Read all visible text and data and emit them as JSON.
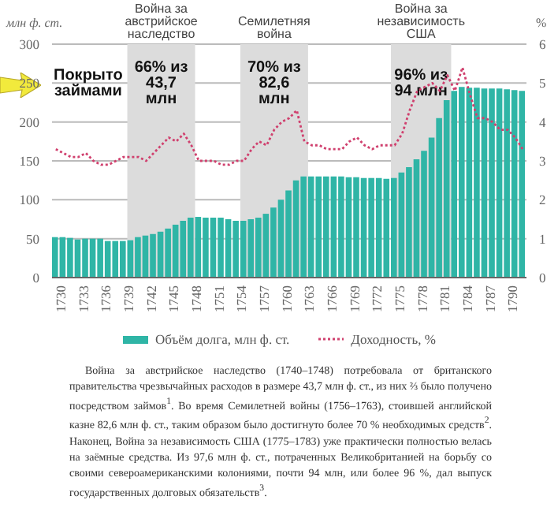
{
  "chart_data": {
    "type": "bar",
    "ylabel": "млн ф. ст.",
    "y2label": "%",
    "x": [
      1730,
      1731,
      1732,
      1733,
      1734,
      1735,
      1736,
      1737,
      1738,
      1739,
      1740,
      1741,
      1742,
      1743,
      1744,
      1745,
      1746,
      1747,
      1748,
      1749,
      1750,
      1751,
      1752,
      1753,
      1754,
      1755,
      1756,
      1757,
      1758,
      1759,
      1760,
      1761,
      1762,
      1763,
      1764,
      1765,
      1766,
      1767,
      1768,
      1769,
      1770,
      1771,
      1772,
      1773,
      1774,
      1775,
      1776,
      1777,
      1778,
      1779,
      1780,
      1781,
      1782,
      1783,
      1784,
      1785,
      1786,
      1787,
      1788,
      1789,
      1790,
      1791,
      1792
    ],
    "xlim": [
      1729.5,
      1792.5
    ],
    "xticks": [
      1730,
      1733,
      1736,
      1739,
      1742,
      1745,
      1748,
      1751,
      1754,
      1757,
      1760,
      1763,
      1766,
      1769,
      1772,
      1775,
      1778,
      1781,
      1784,
      1787,
      1790
    ],
    "ylim": [
      0,
      300
    ],
    "yticks": [
      0,
      50,
      100,
      150,
      200,
      250,
      300
    ],
    "y2lim": [
      0,
      6
    ],
    "y2ticks": [
      0,
      1,
      2,
      3,
      4,
      5,
      6
    ],
    "grid": "y",
    "legend": "bottom",
    "series": [
      {
        "name": "Объём долга, млн ф. ст.",
        "color": "#2fb5a6",
        "values": [
          52,
          52,
          51,
          49,
          50,
          50,
          50,
          47,
          47,
          47,
          48,
          52,
          54,
          56,
          59,
          63,
          68,
          73,
          77,
          78,
          77,
          77,
          77,
          75,
          73,
          73,
          75,
          77,
          82,
          90,
          100,
          112,
          125,
          130,
          130,
          130,
          130,
          130,
          130,
          129,
          129,
          128,
          128,
          128,
          127,
          128,
          135,
          142,
          152,
          163,
          180,
          205,
          228,
          240,
          245,
          244,
          244,
          243,
          243,
          243,
          242,
          241,
          240
        ]
      },
      {
        "name": "Доходность, %",
        "type": "line",
        "axis": "y2",
        "color": "#d0406e",
        "line_style": "dotted",
        "marker": "none",
        "values": [
          3.3,
          3.2,
          3.1,
          3.1,
          3.2,
          3.0,
          2.9,
          2.9,
          3.0,
          3.1,
          3.1,
          3.1,
          3.0,
          3.2,
          3.4,
          3.6,
          3.5,
          3.7,
          3.4,
          3.0,
          3.0,
          3.0,
          2.9,
          2.9,
          3.0,
          3.0,
          3.3,
          3.5,
          3.4,
          3.8,
          4.0,
          4.1,
          4.3,
          3.5,
          3.4,
          3.4,
          3.3,
          3.3,
          3.3,
          3.5,
          3.6,
          3.4,
          3.3,
          3.4,
          3.4,
          3.4,
          3.7,
          4.3,
          4.8,
          4.9,
          5.0,
          4.8,
          5.2,
          4.8,
          5.4,
          4.7,
          4.1,
          4.1,
          4.0,
          3.8,
          3.8,
          3.6,
          3.3
        ]
      }
    ],
    "bands": [
      {
        "axis": "x",
        "from": 1739.5,
        "to": 1748.5,
        "label": "Война за австрийское наследство",
        "color": "#dcdcdc"
      },
      {
        "axis": "x",
        "from": 1754.5,
        "to": 1763.5,
        "label": "Семилетняя война",
        "color": "#dcdcdc"
      },
      {
        "axis": "x",
        "from": 1774.5,
        "to": 1782.5,
        "label": "Война за независимость США",
        "color": "#dcdcdc"
      }
    ],
    "annotations": [
      "Покрыто займами",
      "66% из 43,7 млн",
      "70% из 82,6 млн",
      "96% из 94 млн",
      "Война за австрийское наследство (1740–1748) потребовала от британского правительства чрезвычайных расходов в размере 43,7 млн ф. ст., из них ⅔ было получено посредством займов$^{1}$. Во время Семилетней войны (1756–1763), стоившей английской казне 82,6 млн ф. ст., таким образом было достигнуто более 70 % необходимых средств$^{2}$. Наконец, Война за независимость США (1775–1783) уже практически полностью велась на заёмные средства. Из 97,6 млн ф. ст., потраченных Великобританией на борьбу со своими североамериканскими колониями, почти 94 млн, или более 96 %, дал выпуск государственных долговых обязательств$^{3}$."
    ]
  }
}
